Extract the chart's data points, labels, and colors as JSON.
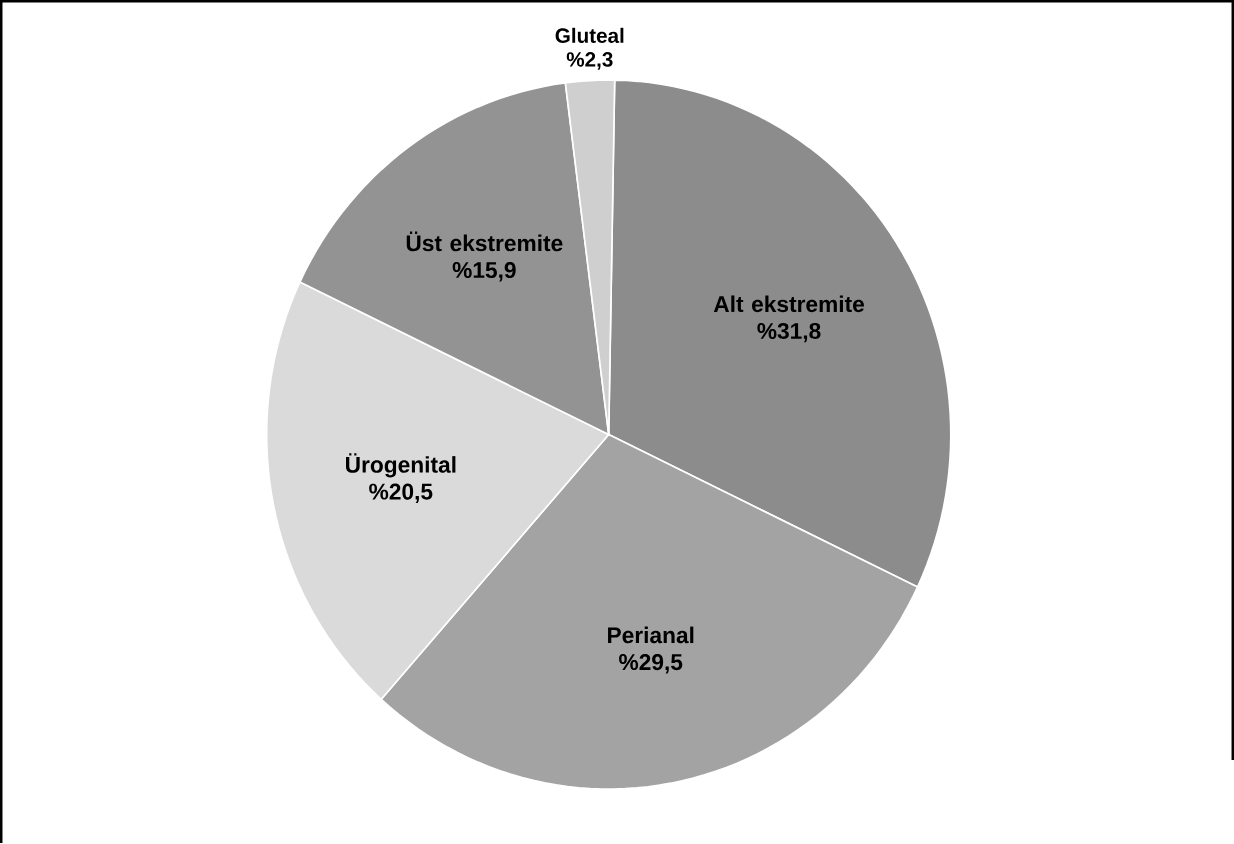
{
  "chart_data": {
    "type": "pie",
    "categories": [
      "Alt ekstremite",
      "Perianal",
      "Ürogenital",
      "Üst ekstremite",
      "Gluteal"
    ],
    "values": [
      31.8,
      29.5,
      20.5,
      15.9,
      2.3
    ],
    "value_labels": [
      "%31,8",
      "%29,5",
      "%20,5",
      "%15,9",
      "%2,3"
    ],
    "colors": [
      "#8c8c8c",
      "#a3a3a3",
      "#dadada",
      "#939393",
      "#cfcfcf"
    ]
  }
}
